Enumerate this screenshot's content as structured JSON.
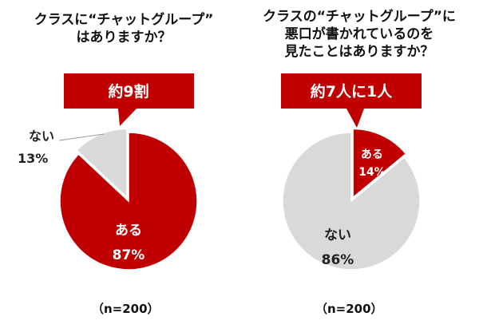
{
  "chart_data": [
    {
      "type": "pie",
      "title": "クラスに“チャットグループ”\nはありますか？",
      "slices": [
        {
          "label": "ある",
          "value": 87,
          "text": "87%",
          "color": "#c00000"
        },
        {
          "label": "ない",
          "value": 13,
          "text": "13%",
          "color": "#d9d9d9"
        }
      ],
      "callout": "約9割",
      "note": "（n=200）"
    },
    {
      "type": "pie",
      "title": "クラスの“チャットグループ”に\n悪口が書かれているのを\n見たことはありますか？",
      "slices": [
        {
          "label": "ある",
          "value": 14,
          "text": "14%",
          "color": "#c00000"
        },
        {
          "label": "ない",
          "value": 86,
          "text": "86%",
          "color": "#d9d9d9"
        }
      ],
      "callout": "約7人に1人",
      "note": "（n=200）"
    }
  ]
}
